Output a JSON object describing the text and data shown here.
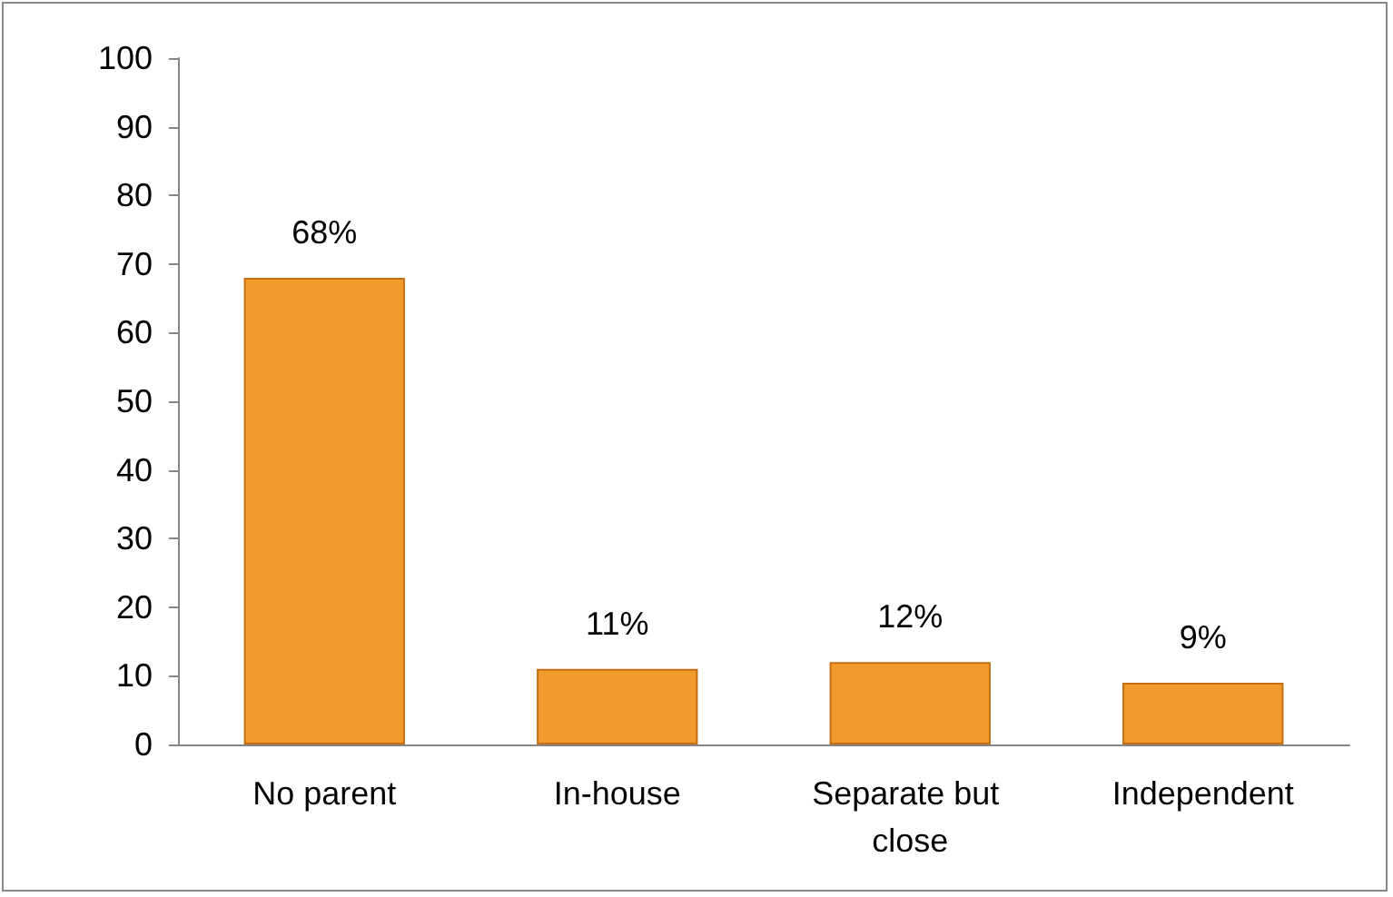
{
  "chart_data": {
    "type": "bar",
    "categories": [
      "No parent",
      "In-house",
      "Separate but close",
      "Independent"
    ],
    "values": [
      68,
      11,
      12,
      9
    ],
    "color": "#f39a2c",
    "value_labels": [
      "68%",
      "11%",
      "12%",
      "9%"
    ],
    "ylim": [
      0,
      100
    ],
    "yticks": [
      0,
      10,
      20,
      30,
      40,
      50,
      60,
      70,
      80,
      90,
      100
    ],
    "grid": false
  }
}
